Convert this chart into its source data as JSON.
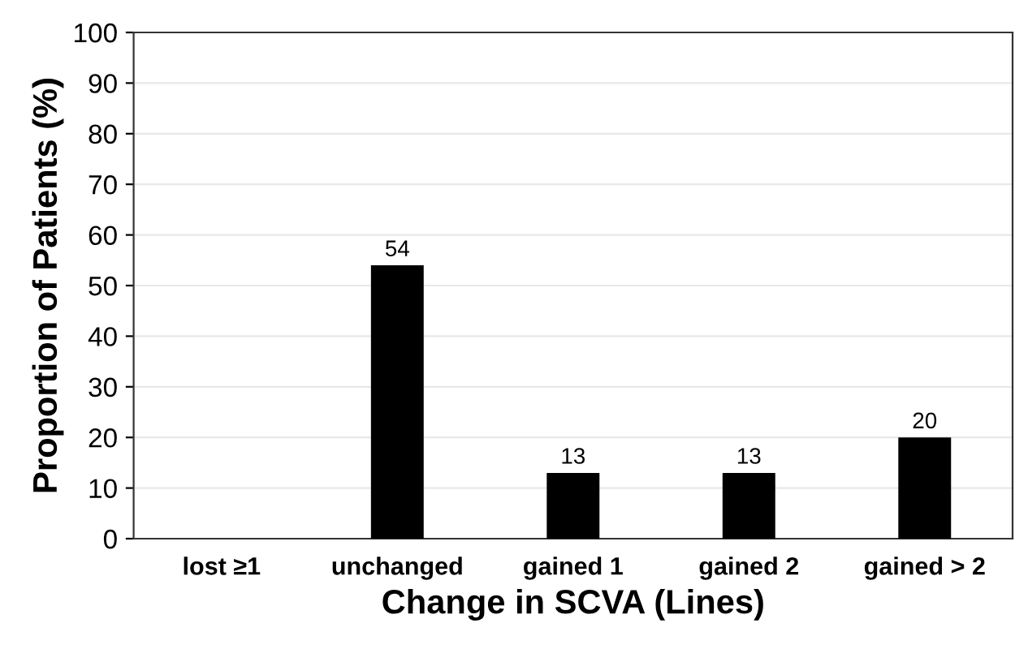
{
  "chart_data": {
    "type": "bar",
    "xlabel": "Change in SCVA (Lines)",
    "ylabel": "Proportion of Patients (%)",
    "categories": [
      "lost ≥1",
      "unchanged",
      "gained 1",
      "gained 2",
      "gained > 2"
    ],
    "values": [
      0,
      54,
      13,
      13,
      20
    ],
    "value_labels": [
      null,
      "54",
      "13",
      "13",
      "20"
    ],
    "color": "#000000",
    "ylim": [
      0,
      100
    ],
    "yticks": [
      0,
      10,
      20,
      30,
      40,
      50,
      60,
      70,
      80,
      90,
      100
    ],
    "grid": "y"
  }
}
